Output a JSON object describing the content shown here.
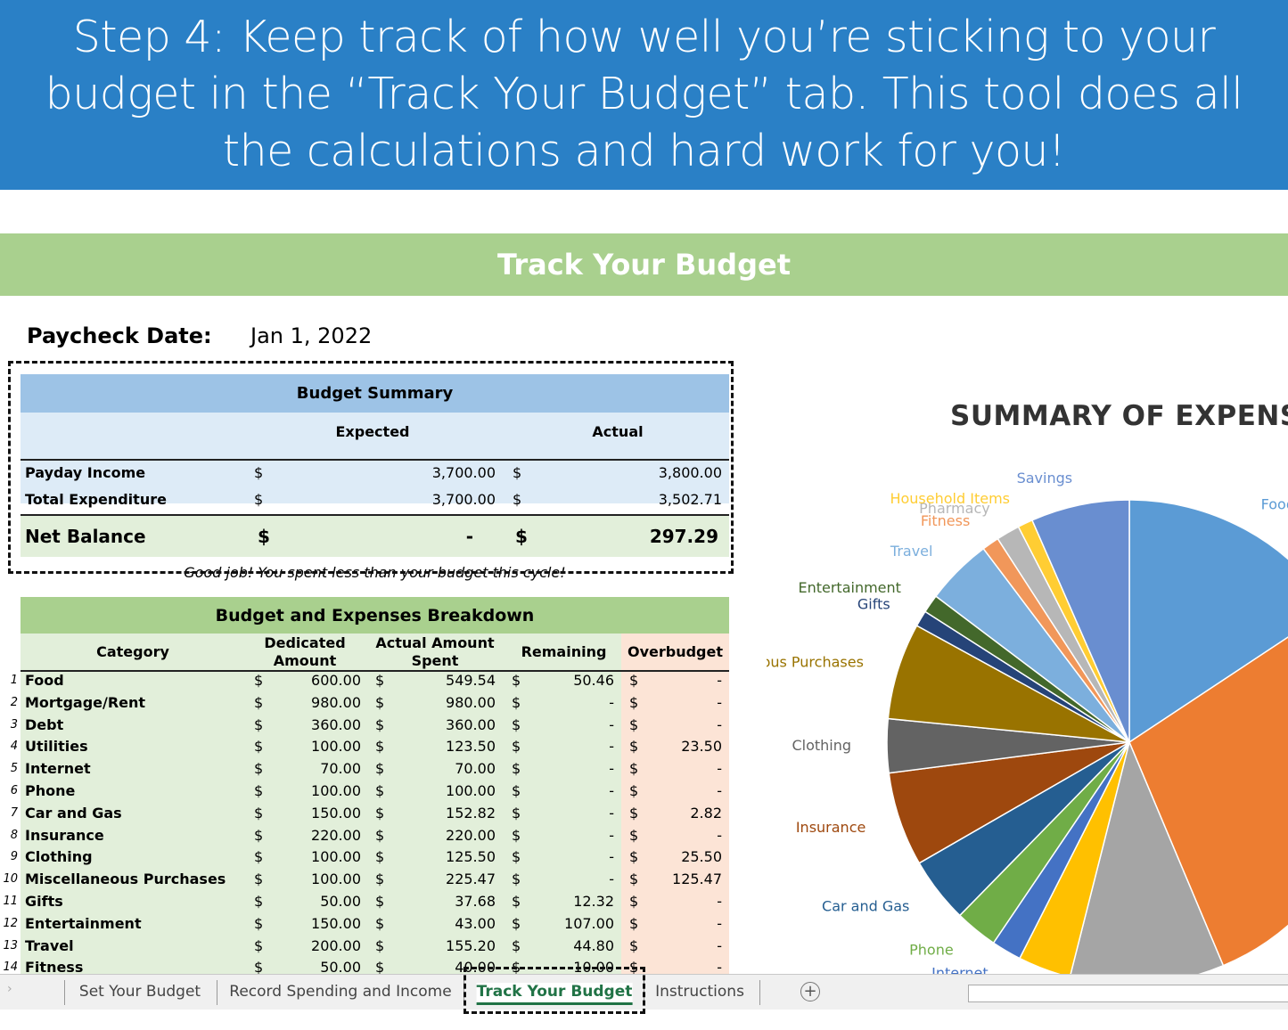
{
  "banner": {
    "text": "Step 4: Keep track of how well you’re sticking to your budget in the “Track Your Budget” tab. This tool does all the calculations and hard work for you!"
  },
  "sheet": {
    "title": "Track Your Budget",
    "paycheck_label": "Paycheck Date:",
    "paycheck_date": "Jan 1, 2022",
    "currency": "$"
  },
  "summary": {
    "title": "Budget Summary",
    "columns": [
      "Expected",
      "Actual"
    ],
    "rows": [
      [
        "Payday Income",
        "3,700.00",
        "3,800.00"
      ],
      [
        "Total Expenditure",
        "3,700.00",
        "3,502.71"
      ]
    ],
    "net": [
      "Net Balance",
      "-",
      "297.29"
    ],
    "message": "Good job! You spent less than your budget this cycle!"
  },
  "breakdown": {
    "title": "Budget and Expenses Breakdown",
    "columns": [
      "Category",
      "Dedicated Amount",
      "Actual Amount Spent",
      "Remaining",
      "Overbudget"
    ],
    "rows": [
      [
        "1",
        "Food",
        "600.00",
        "549.54",
        "50.46",
        "-"
      ],
      [
        "2",
        "Mortgage/Rent",
        "980.00",
        "980.00",
        "-",
        "-"
      ],
      [
        "3",
        "Debt",
        "360.00",
        "360.00",
        "-",
        "-"
      ],
      [
        "4",
        "Utilities",
        "100.00",
        "123.50",
        "-",
        "23.50"
      ],
      [
        "5",
        "Internet",
        "70.00",
        "70.00",
        "-",
        "-"
      ],
      [
        "6",
        "Phone",
        "100.00",
        "100.00",
        "-",
        "-"
      ],
      [
        "7",
        "Car and Gas",
        "150.00",
        "152.82",
        "-",
        "2.82"
      ],
      [
        "8",
        "Insurance",
        "220.00",
        "220.00",
        "-",
        "-"
      ],
      [
        "9",
        "Clothing",
        "100.00",
        "125.50",
        "-",
        "25.50"
      ],
      [
        "10",
        "Miscellaneous Purchases",
        "100.00",
        "225.47",
        "-",
        "125.47"
      ],
      [
        "11",
        "Gifts",
        "50.00",
        "37.68",
        "12.32",
        "-"
      ],
      [
        "12",
        "Entertainment",
        "150.00",
        "43.00",
        "107.00",
        "-"
      ],
      [
        "13",
        "Travel",
        "200.00",
        "155.20",
        "44.80",
        "-"
      ],
      [
        "14",
        "Fitness",
        "50.00",
        "40.00",
        "10.00",
        "-"
      ]
    ]
  },
  "chart_data": {
    "type": "pie",
    "title": "SUMMARY OF EXPENSES",
    "categories": [
      "Food",
      null,
      null,
      null,
      "Internet",
      "Phone",
      "Car and Gas",
      "Insurance",
      "Clothing",
      "Miscellaneous Purchases",
      "Gifts",
      "Entertainment",
      "Travel",
      "Fitness",
      "Pharmacy",
      "Household Items",
      "Savings"
    ],
    "values": [
      549.54,
      980,
      360,
      123.5,
      70,
      100,
      152.82,
      220,
      125.5,
      225.47,
      37.68,
      43,
      155.2,
      40,
      55,
      35,
      230
    ],
    "colors": [
      "#5b9bd5",
      "#ed7d31",
      "#a5a5a5",
      "#ffc000",
      "#4472c4",
      "#70ad47",
      "#255e91",
      "#9e480e",
      "#636363",
      "#997300",
      "#264478",
      "#43682b",
      "#7cafdd",
      "#f1975a",
      "#b7b7b7",
      "#ffcd33",
      "#698ed0"
    ]
  },
  "tabs": [
    "Set Your Budget",
    "Record Spending and Income",
    "Track Your Budget",
    "Instructions"
  ]
}
